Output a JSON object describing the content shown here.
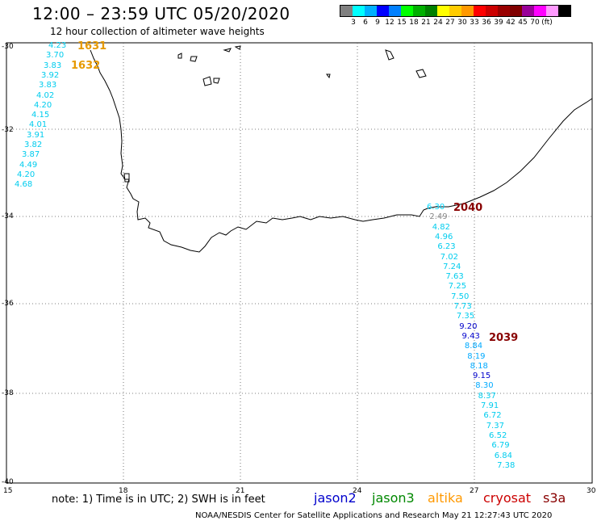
{
  "title": "12:00 – 23:59 UTC 05/20/2020",
  "subtitle": "12 hour collection of altimeter wave heights",
  "legend": {
    "colors": [
      "#808080",
      "#00ffff",
      "#00b0ff",
      "#0000ff",
      "#0080ff",
      "#00ff00",
      "#00b000",
      "#008000",
      "#ffff00",
      "#ffcc00",
      "#ff9900",
      "#ff0000",
      "#cc0000",
      "#990000",
      "#800000",
      "#990099",
      "#ff00ff",
      "#ff99ff",
      "#000000"
    ],
    "labels": [
      "3",
      "6",
      "9",
      "12",
      "15",
      "18",
      "21",
      "24",
      "27",
      "30",
      "33",
      "36",
      "39",
      "42",
      "45",
      "70",
      "(ft)"
    ]
  },
  "axes": {
    "y_labels": [
      "-30",
      "-32",
      "-34",
      "-36",
      "-38",
      "-40"
    ],
    "x_labels": [
      "15",
      "18",
      "21",
      "24",
      "27",
      "30"
    ]
  },
  "note": "note:  1) Time is in UTC;  2) SWH is in feet",
  "satellites": [
    {
      "name": "jason2",
      "color": "#0000cc"
    },
    {
      "name": "jason3",
      "color": "#008800"
    },
    {
      "name": "altika",
      "color": "#ff9900"
    },
    {
      "name": "cryosat",
      "color": "#cc0000"
    },
    {
      "name": "s3a",
      "color": "#880000"
    }
  ],
  "credit": "NOAA/NESDIS Center for Satellite Applications and Research     May 21 12:27:43 UTC 2020",
  "time_labels": [
    {
      "text": "1631",
      "color": "#e69900"
    },
    {
      "text": "1632",
      "color": "#e69900"
    },
    {
      "text": "2040",
      "color": "#880000"
    },
    {
      "text": "2039",
      "color": "#880000"
    }
  ],
  "track_west": [
    "4.23",
    "3.70",
    "3.83",
    "3.92",
    "3.83",
    "4.02",
    "4.20",
    "4.15",
    "4.01",
    "3.91",
    "3.82",
    "3.87",
    "4.49",
    "4.20",
    "4.68"
  ],
  "track_east": [
    "6.30",
    "2.49",
    "4.82",
    "4.96",
    "6.23",
    "7.02",
    "7.24",
    "7.63",
    "7.25",
    "7.50",
    "7.73",
    "7.35",
    "9.20",
    "9.43",
    "8.84",
    "8.19",
    "8.18",
    "9.15",
    "8.30",
    "8.37",
    "7.91",
    "6.72",
    "7.37",
    "6.52",
    "6.79",
    "6.84",
    "7.38"
  ],
  "track_east_colors": [
    "#00d8ff",
    "#888888",
    "#00ccee",
    "#00ccee",
    "#00ccee",
    "#00ccee",
    "#00ccee",
    "#00ccee",
    "#00ccee",
    "#00ccee",
    "#00ccee",
    "#00ccee",
    "#0000cc",
    "#0000cc",
    "#00aaff",
    "#00aaff",
    "#00aaff",
    "#0000cc",
    "#00aaff",
    "#00ccee",
    "#00ccee",
    "#00ccee",
    "#00ccee",
    "#00ccee",
    "#00ccee",
    "#00ccee",
    "#00ccee"
  ]
}
